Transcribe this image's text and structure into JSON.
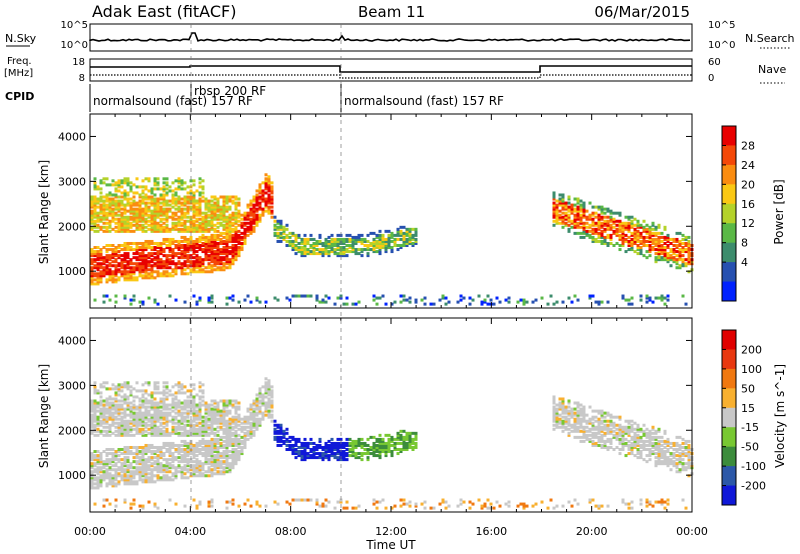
{
  "header": {
    "station": "Adak East (fitACF)",
    "beam": "Beam 11",
    "date": "06/Mar/2015"
  },
  "strip": {
    "nsky_label": "N.Sky",
    "nsky_ticks": [
      "10^5",
      "10^0"
    ],
    "nsearch_label": "N.Search",
    "nsearch_ticks": [
      "10^5",
      "10^0"
    ],
    "freq_label_1": "Freq.",
    "freq_label_2": "[MHz]",
    "freq_ticks": [
      "18",
      "8"
    ],
    "nave_label": "Nave",
    "nave_ticks": [
      "60",
      "0"
    ],
    "cpid_label": "CPID",
    "cpid_segments": [
      {
        "label": "normalsound (fast) 157 RF",
        "start_h": 0,
        "end_h": 4
      },
      {
        "label": "rbsp 200 RF",
        "start_h": 4,
        "end_h": 10
      },
      {
        "label": "normalsound (fast) 157 RF",
        "start_h": 10,
        "end_h": 24
      }
    ]
  },
  "chart_data": [
    {
      "type": "heatmap",
      "name": "power-panel",
      "ylabel": "Slant Range [km]",
      "xlabel": "Time UT",
      "xlim": [
        0,
        24
      ],
      "ylim": [
        180,
        4500
      ],
      "yticks": [
        "1000",
        "2000",
        "3000",
        "4000"
      ],
      "xticks": [
        "00:00",
        "04:00",
        "08:00",
        "12:00",
        "16:00",
        "20:00",
        "00:00"
      ],
      "colorbar": {
        "label": "Power [dB]",
        "ticks": [
          "4",
          "8",
          "12",
          "16",
          "20",
          "24",
          "28"
        ],
        "colors": [
          "#0022ff",
          "#2650b0",
          "#3c8c6c",
          "#5ab846",
          "#b4d22a",
          "#fac814",
          "#fa8c10",
          "#f44808",
          "#e80000"
        ]
      }
    },
    {
      "type": "heatmap",
      "name": "velocity-panel",
      "ylabel": "Slant Range [km]",
      "xlabel": "Time UT",
      "xlim": [
        0,
        24
      ],
      "ylim": [
        180,
        4500
      ],
      "yticks": [
        "1000",
        "2000",
        "3000",
        "4000"
      ],
      "xticks": [
        "00:00",
        "04:00",
        "08:00",
        "12:00",
        "16:00",
        "20:00",
        "00:00"
      ],
      "colorbar": {
        "label": "Velocity [m s^-1]",
        "ticks": [
          "200",
          "100",
          "50",
          "15",
          "-15",
          "-50",
          "-100",
          "-200"
        ],
        "colors": [
          "#1018d8",
          "#2c58a8",
          "#3c8c3c",
          "#78c832",
          "#c8c8c8",
          "#f8b030",
          "#f07810",
          "#e83810",
          "#e00000"
        ]
      }
    }
  ],
  "xaxis": {
    "title": "Time UT",
    "ticks": [
      "00:00",
      "04:00",
      "08:00",
      "12:00",
      "16:00",
      "20:00",
      "00:00"
    ]
  }
}
